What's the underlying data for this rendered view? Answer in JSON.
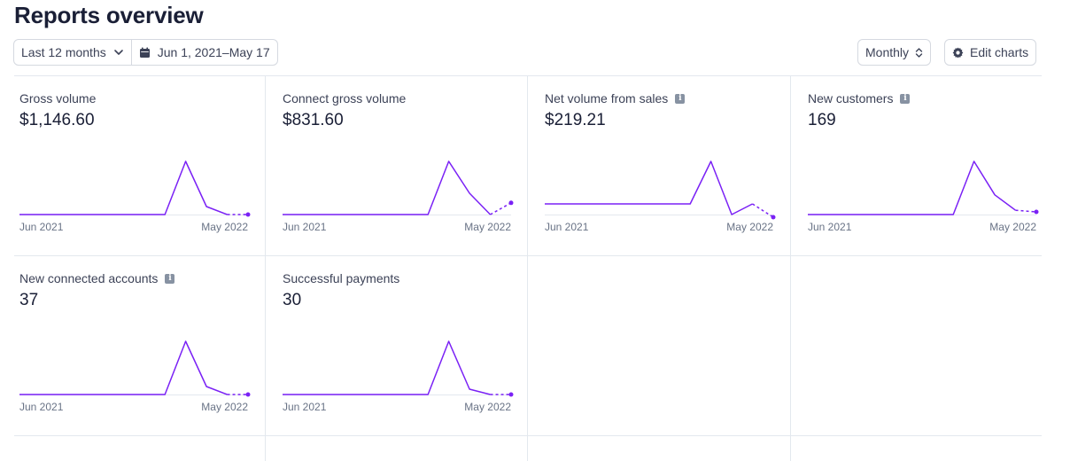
{
  "page": {
    "title": "Reports overview"
  },
  "toolbar": {
    "range_label": "Last 12 months",
    "date_label": "Jun 1, 2021–May 17",
    "interval_label": "Monthly",
    "edit_label": "Edit charts"
  },
  "colors": {
    "accent": "#7a21f5",
    "baseline": "#e3e8ee"
  },
  "cards": [
    {
      "title": "Gross volume",
      "value": "$1,146.60",
      "info": false,
      "x_start": "Jun 2021",
      "x_end": "May 2022",
      "chart_data": {
        "type": "line",
        "values": [
          0,
          0,
          0,
          0,
          0,
          0,
          0,
          0,
          1.0,
          0.15,
          0,
          0
        ],
        "partial_last": true
      }
    },
    {
      "title": "Connect gross volume",
      "value": "$831.60",
      "info": false,
      "x_start": "Jun 2021",
      "x_end": "May 2022",
      "chart_data": {
        "type": "line",
        "values": [
          0,
          0,
          0,
          0,
          0,
          0,
          0,
          0,
          1.0,
          0.4,
          0,
          0.22
        ],
        "partial_last": true
      }
    },
    {
      "title": "Net volume from sales",
      "value": "$219.21",
      "info": true,
      "x_start": "Jun 2021",
      "x_end": "May 2022",
      "chart_data": {
        "type": "line",
        "values": [
          0.2,
          0.2,
          0.2,
          0.2,
          0.2,
          0.2,
          0.2,
          0.2,
          1.0,
          0,
          0.2,
          -0.05
        ],
        "partial_last": true
      }
    },
    {
      "title": "New customers",
      "value": "169",
      "info": true,
      "x_start": "Jun 2021",
      "x_end": "May 2022",
      "chart_data": {
        "type": "line",
        "values": [
          0,
          0,
          0,
          0,
          0,
          0,
          0,
          0,
          1.0,
          0.37,
          0.08,
          0.05
        ],
        "partial_last": true
      }
    },
    {
      "title": "New connected accounts",
      "value": "37",
      "info": true,
      "x_start": "Jun 2021",
      "x_end": "May 2022",
      "chart_data": {
        "type": "line",
        "values": [
          0,
          0,
          0,
          0,
          0,
          0,
          0,
          0,
          1.0,
          0.15,
          0,
          0
        ],
        "partial_last": true
      }
    },
    {
      "title": "Successful payments",
      "value": "30",
      "info": false,
      "x_start": "Jun 2021",
      "x_end": "May 2022",
      "chart_data": {
        "type": "line",
        "values": [
          0,
          0,
          0,
          0,
          0,
          0,
          0,
          0,
          1.0,
          0.1,
          0,
          0
        ],
        "partial_last": true
      }
    }
  ]
}
